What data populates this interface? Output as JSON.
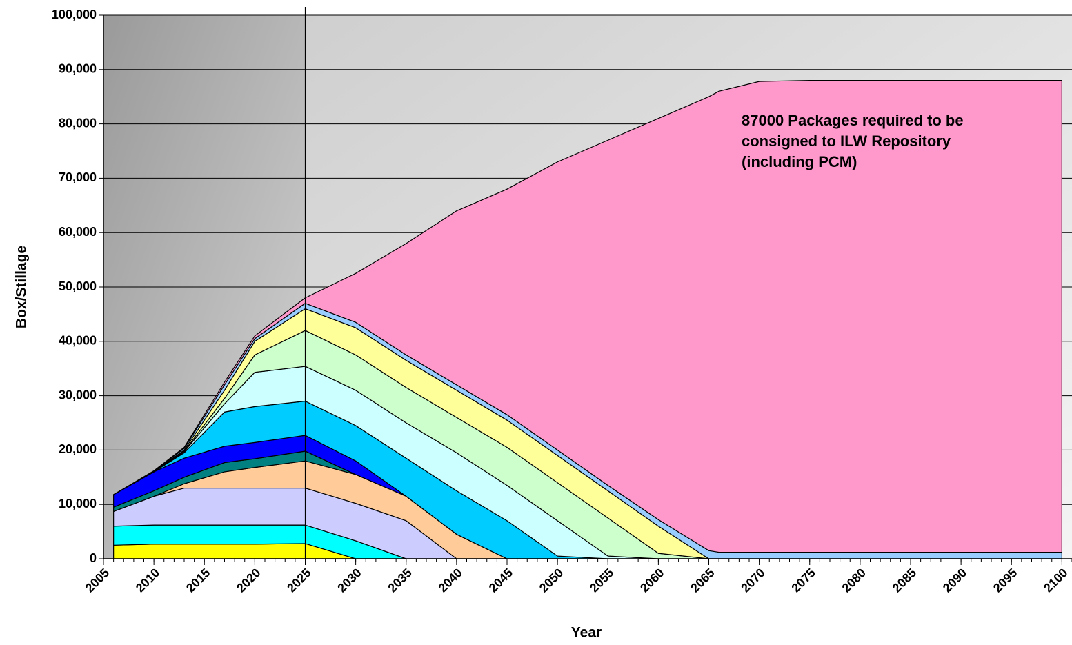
{
  "chart_data": {
    "type": "stacked_area",
    "x_label": "Year",
    "y_label": "Box/Stillage",
    "annotation": [
      "87000 Packages required to be",
      "consigned to ILW Repository",
      "(including PCM)"
    ],
    "vertical_line_x": 2025,
    "xlim": [
      2005,
      2101
    ],
    "xticks": [
      2005,
      2010,
      2015,
      2020,
      2025,
      2030,
      2035,
      2040,
      2045,
      2050,
      2055,
      2060,
      2065,
      2070,
      2075,
      2080,
      2085,
      2090,
      2095,
      2100
    ],
    "ylim": [
      0,
      100000
    ],
    "yticks": [
      0,
      {
        "value": 10000,
        "label": "10,000"
      },
      {
        "value": 20000,
        "label": "20,000"
      },
      {
        "value": 30000,
        "label": "30,000"
      },
      {
        "value": 40000,
        "label": "40,000"
      },
      {
        "value": 50000,
        "label": "50,000"
      },
      {
        "value": 60000,
        "label": "60,000"
      },
      {
        "value": 70000,
        "label": "70,000"
      },
      {
        "value": 80000,
        "label": "80,000"
      },
      {
        "value": 90000,
        "label": "90,000"
      },
      {
        "value": 100000,
        "label": "100,000"
      }
    ],
    "grid": true,
    "x": [
      2006,
      2010,
      2013,
      2017,
      2020,
      2025,
      2030,
      2035,
      2040,
      2045,
      2050,
      2055,
      2060,
      2065,
      2066,
      2070,
      2075,
      2080,
      2085,
      2090,
      2095,
      2100
    ],
    "series": [
      {
        "color": "#ffff00",
        "values": [
          2500,
          2700,
          2700,
          2700,
          2700,
          2800,
          0,
          0,
          0,
          0,
          0,
          0,
          0,
          0,
          0,
          0,
          0,
          0,
          0,
          0,
          0,
          0
        ]
      },
      {
        "color": "#00ffff",
        "values": [
          3500,
          3500,
          3500,
          3500,
          3500,
          3400,
          3300,
          0,
          0,
          0,
          0,
          0,
          0,
          0,
          0,
          0,
          0,
          0,
          0,
          0,
          0,
          0
        ]
      },
      {
        "color": "#ccccff",
        "values": [
          2700,
          5300,
          6800,
          6800,
          6800,
          6800,
          6900,
          7000,
          0,
          0,
          0,
          0,
          0,
          0,
          0,
          0,
          0,
          0,
          0,
          0,
          0,
          0
        ]
      },
      {
        "color": "#ffcc99",
        "values": [
          0,
          0,
          800,
          3000,
          3800,
          5000,
          5300,
          4500,
          4500,
          0,
          0,
          0,
          0,
          0,
          0,
          0,
          0,
          0,
          0,
          0,
          0,
          0
        ]
      },
      {
        "color": "#008080",
        "values": [
          800,
          1000,
          1200,
          1700,
          1600,
          1800,
          0,
          0,
          0,
          0,
          0,
          0,
          0,
          0,
          0,
          0,
          0,
          0,
          0,
          0,
          0,
          0
        ]
      },
      {
        "color": "#0000ff",
        "values": [
          2300,
          3500,
          3500,
          3000,
          3000,
          2900,
          2500,
          0,
          0,
          0,
          0,
          0,
          0,
          0,
          0,
          0,
          0,
          0,
          0,
          0,
          0,
          0
        ]
      },
      {
        "color": "#00ccff",
        "values": [
          0,
          0,
          1000,
          6300,
          6600,
          6300,
          6500,
          7000,
          8000,
          7000,
          500,
          0,
          0,
          0,
          0,
          0,
          0,
          0,
          0,
          0,
          0,
          0
        ]
      },
      {
        "color": "#ccffff",
        "values": [
          0,
          0,
          200,
          1500,
          6300,
          6400,
          6500,
          6500,
          7000,
          6500,
          6500,
          500,
          0,
          0,
          0,
          0,
          0,
          0,
          0,
          0,
          0,
          0
        ]
      },
      {
        "color": "#ccffcc",
        "values": [
          0,
          0,
          100,
          1000,
          3200,
          6600,
          6500,
          6500,
          6500,
          7000,
          7000,
          7000,
          1000,
          0,
          0,
          0,
          0,
          0,
          0,
          0,
          0,
          0
        ]
      },
      {
        "color": "#ffff99",
        "values": [
          0,
          0,
          200,
          1500,
          2500,
          4000,
          5000,
          5000,
          5000,
          5000,
          5000,
          5000,
          5000,
          0,
          0,
          0,
          0,
          0,
          0,
          0,
          0,
          0
        ]
      },
      {
        "color": "#99ccff",
        "values": [
          0,
          100,
          300,
          1000,
          500,
          1000,
          1000,
          1000,
          1000,
          1000,
          1000,
          1000,
          1200,
          1500,
          1200,
          1200,
          1200,
          1200,
          1200,
          1200,
          1200,
          1200
        ]
      },
      {
        "color": "#ff99cc",
        "values": [
          0,
          100,
          200,
          500,
          500,
          1000,
          9000,
          20500,
          32000,
          41500,
          53000,
          63500,
          73800,
          83500,
          84800,
          86600,
          86800,
          86800,
          86800,
          86800,
          86800,
          86800
        ]
      }
    ]
  }
}
